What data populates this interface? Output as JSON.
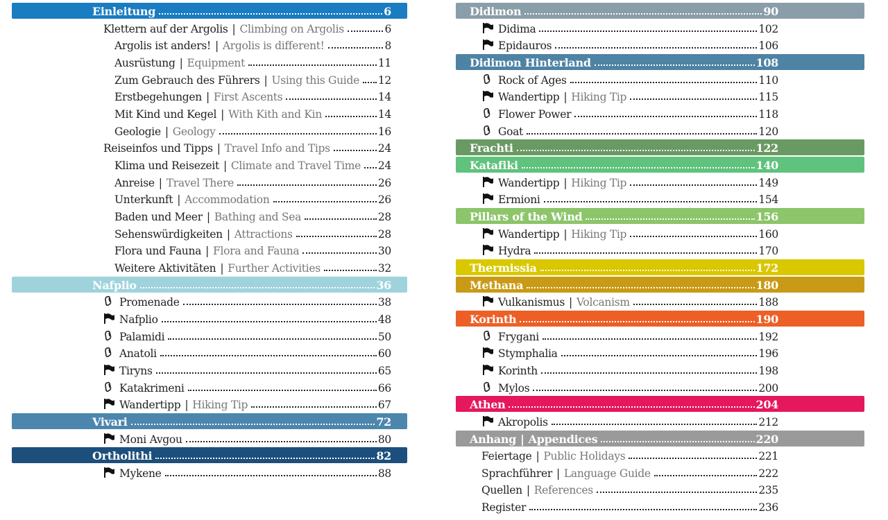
{
  "separator": "|",
  "columns": [
    {
      "entries": [
        {
          "kind": "section",
          "title": "Einleitung",
          "page": 6,
          "color": "#1a7cc1"
        },
        {
          "kind": "item",
          "level": 1,
          "title": "Klettern auf der Argolis",
          "translation": "Climbing on Argolis",
          "page": 6
        },
        {
          "kind": "item",
          "level": 2,
          "title": "Argolis ist anders!",
          "translation": "Argolis is different!",
          "page": 8
        },
        {
          "kind": "item",
          "level": 2,
          "title": "Ausrüstung",
          "translation": "Equipment",
          "page": 11
        },
        {
          "kind": "item",
          "level": 2,
          "title": "Zum Gebrauch des Führers",
          "translation": "Using this Guide",
          "page": 12
        },
        {
          "kind": "item",
          "level": 2,
          "title": "Erstbegehungen",
          "translation": "First Ascents",
          "page": 14
        },
        {
          "kind": "item",
          "level": 2,
          "title": "Mit Kind und Kegel",
          "translation": "With Kith and Kin",
          "page": 14
        },
        {
          "kind": "item",
          "level": 2,
          "title": "Geologie",
          "translation": "Geology",
          "page": 16
        },
        {
          "kind": "item",
          "level": 1,
          "title": "Reiseinfos und Tipps",
          "translation": "Travel Info and Tips",
          "page": 24
        },
        {
          "kind": "item",
          "level": 2,
          "title": "Klima und Reisezeit",
          "translation": "Climate and Travel Time",
          "page": 24
        },
        {
          "kind": "item",
          "level": 2,
          "title": "Anreise",
          "translation": "Travel There",
          "page": 26
        },
        {
          "kind": "item",
          "level": 2,
          "title": "Unterkunft",
          "translation": "Accommodation",
          "page": 26
        },
        {
          "kind": "item",
          "level": 2,
          "title": "Baden und Meer",
          "translation": "Bathing and Sea",
          "page": 28
        },
        {
          "kind": "item",
          "level": 2,
          "title": "Sehenswürdigkeiten",
          "translation": "Attractions",
          "page": 28
        },
        {
          "kind": "item",
          "level": 2,
          "title": "Flora und Fauna",
          "translation": "Flora and Fauna",
          "page": 30
        },
        {
          "kind": "item",
          "level": 2,
          "title": "Weitere Aktivitäten",
          "translation": "Further Activities",
          "page": 32
        },
        {
          "kind": "section",
          "title": "Nafplio",
          "page": 36,
          "color": "#9fd3dc"
        },
        {
          "kind": "item",
          "icon": "climb",
          "title": "Promenade",
          "page": 38
        },
        {
          "kind": "item",
          "icon": "flag",
          "title": "Nafplio",
          "page": 48
        },
        {
          "kind": "item",
          "icon": "climb",
          "title": "Palamidi",
          "page": 50
        },
        {
          "kind": "item",
          "icon": "climb",
          "title": "Anatoli",
          "page": 60
        },
        {
          "kind": "item",
          "icon": "flag",
          "title": "Tiryns",
          "page": 65
        },
        {
          "kind": "item",
          "icon": "climb",
          "title": "Katakrimeni",
          "page": 66
        },
        {
          "kind": "item",
          "icon": "flag",
          "title": "Wandertipp",
          "translation": "Hiking Tip",
          "page": 67
        },
        {
          "kind": "section",
          "title": "Vivari",
          "page": 72,
          "color": "#4d86ad"
        },
        {
          "kind": "item",
          "icon": "flag",
          "title": "Moni Avgou",
          "page": 80
        },
        {
          "kind": "section",
          "title": "Ortholithi",
          "page": 82,
          "color": "#1d4f7c"
        },
        {
          "kind": "item",
          "icon": "flag",
          "title": "Mykene",
          "page": 88
        }
      ]
    },
    {
      "entries": [
        {
          "kind": "section",
          "title": "Didimon",
          "page": 90,
          "color": "#8a9ea9"
        },
        {
          "kind": "item",
          "icon": "flag",
          "title": "Didima",
          "page": 102
        },
        {
          "kind": "item",
          "icon": "flag",
          "title": "Epidauros",
          "page": 106
        },
        {
          "kind": "section",
          "title": "Didimon Hinterland",
          "page": 108,
          "color": "#4e83a4"
        },
        {
          "kind": "item",
          "icon": "climb",
          "title": "Rock of Ages",
          "page": 110
        },
        {
          "kind": "item",
          "icon": "flag",
          "title": "Wandertipp",
          "translation": "Hiking Tip",
          "page": 115
        },
        {
          "kind": "item",
          "icon": "climb",
          "title": "Flower Power",
          "page": 118
        },
        {
          "kind": "item",
          "icon": "climb",
          "title": "Goat",
          "page": 120
        },
        {
          "kind": "section",
          "title": "Frachti",
          "page": 122,
          "color": "#6a9a64"
        },
        {
          "kind": "section",
          "title": "Katafiki",
          "page": 140,
          "color": "#5fc27d"
        },
        {
          "kind": "item",
          "icon": "flag",
          "title": "Wandertipp",
          "translation": "Hiking Tip",
          "page": 149
        },
        {
          "kind": "item",
          "icon": "flag",
          "title": "Ermioni",
          "page": 154
        },
        {
          "kind": "section",
          "title": "Pillars of the Wind",
          "page": 156,
          "color": "#8cc56a"
        },
        {
          "kind": "item",
          "icon": "flag",
          "title": "Wandertipp",
          "translation": "Hiking Tip",
          "page": 160
        },
        {
          "kind": "item",
          "icon": "flag",
          "title": "Hydra",
          "page": 170
        },
        {
          "kind": "section",
          "title": "Thermissia",
          "page": 172,
          "color": "#d9c800"
        },
        {
          "kind": "section",
          "title": "Methana",
          "page": 180,
          "color": "#c99a16"
        },
        {
          "kind": "item",
          "icon": "flag",
          "title": "Vulkanismus",
          "translation": "Volcanism",
          "page": 188
        },
        {
          "kind": "section",
          "title": "Korinth",
          "page": 190,
          "color": "#ec6027"
        },
        {
          "kind": "item",
          "icon": "climb",
          "title": "Frygani",
          "page": 192
        },
        {
          "kind": "item",
          "icon": "flag",
          "title": "Stymphalia",
          "page": 196
        },
        {
          "kind": "item",
          "icon": "flag",
          "title": "Korinth",
          "page": 198
        },
        {
          "kind": "item",
          "icon": "climb",
          "title": "Mylos",
          "page": 200
        },
        {
          "kind": "section",
          "title": "Athen",
          "page": 204,
          "color": "#e5175d"
        },
        {
          "kind": "item",
          "icon": "flag",
          "title": "Akropolis",
          "page": 212
        },
        {
          "kind": "section",
          "title": "Anhang",
          "translation": "Appendices",
          "page": 220,
          "color": "#9a9a9a"
        },
        {
          "kind": "item",
          "level": 1,
          "title": "Feiertage",
          "translation": "Public Holidays",
          "page": 221
        },
        {
          "kind": "item",
          "level": 1,
          "title": "Sprachführer",
          "translation": "Language Guide",
          "page": 222
        },
        {
          "kind": "item",
          "level": 1,
          "title": "Quellen",
          "translation": "References",
          "page": 235
        },
        {
          "kind": "item",
          "level": 1,
          "title": "Register",
          "page": 236
        }
      ]
    }
  ]
}
